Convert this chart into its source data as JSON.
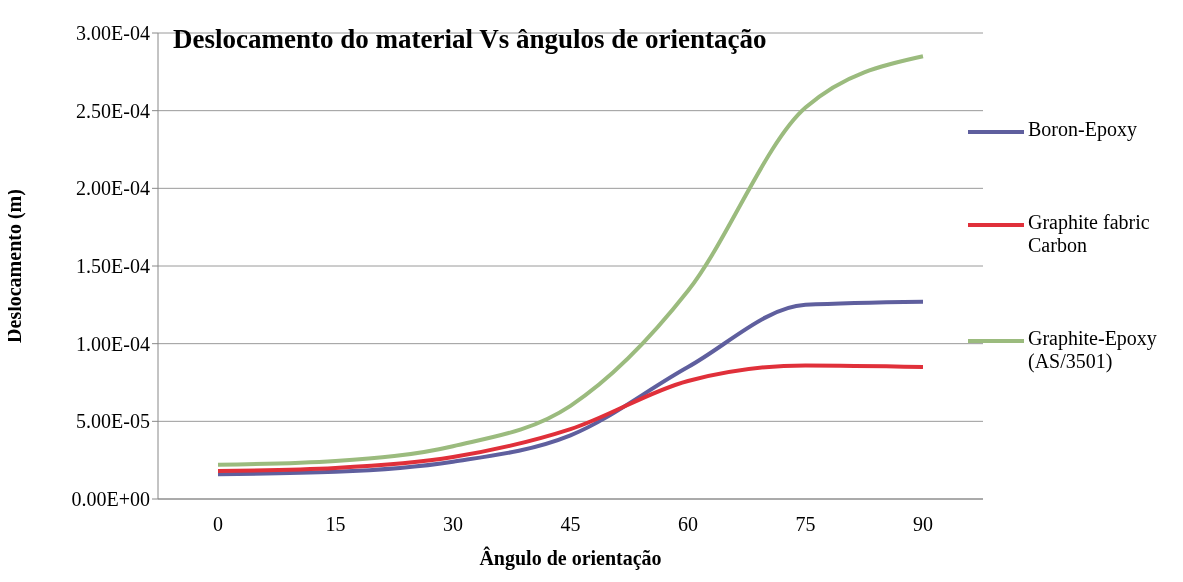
{
  "chart_data": {
    "type": "line",
    "title": "Deslocamento do material Vs ângulos de orientação",
    "xlabel": "Ângulo de orientação",
    "ylabel": "Deslocamento (m)",
    "categories": [
      "0",
      "15",
      "30",
      "45",
      "60",
      "75",
      "90"
    ],
    "series": [
      {
        "name": "Boron-Epoxy",
        "color": "#5f5f9e",
        "values": [
          1.6e-05,
          1.75e-05,
          2.4e-05,
          4.1e-05,
          8.5e-05,
          0.000125,
          0.000127
        ]
      },
      {
        "name": "Graphite fabric Carbon",
        "color": "#e0303a",
        "values": [
          1.8e-05,
          2e-05,
          2.7e-05,
          4.5e-05,
          7.6e-05,
          8.6e-05,
          8.5e-05
        ]
      },
      {
        "name": "Graphite-Epoxy (AS/3501)",
        "color": "#9bbb7e",
        "values": [
          2.2e-05,
          2.45e-05,
          3.4e-05,
          6e-05,
          0.000134,
          0.000252,
          0.000285
        ]
      }
    ],
    "ylim": [
      0,
      0.0003
    ],
    "yticks": [
      {
        "value": 0,
        "label": "0.00E+00"
      },
      {
        "value": 5e-05,
        "label": "5.00E-05"
      },
      {
        "value": 0.0001,
        "label": "1.00E-04"
      },
      {
        "value": 0.00015,
        "label": "1.50E-04"
      },
      {
        "value": 0.0002,
        "label": "2.00E-04"
      },
      {
        "value": 0.00025,
        "label": "2.50E-04"
      },
      {
        "value": 0.0003,
        "label": "3.00E-04"
      }
    ],
    "grid": "y",
    "legend": "right",
    "marker": "none",
    "line_style": "solid"
  }
}
